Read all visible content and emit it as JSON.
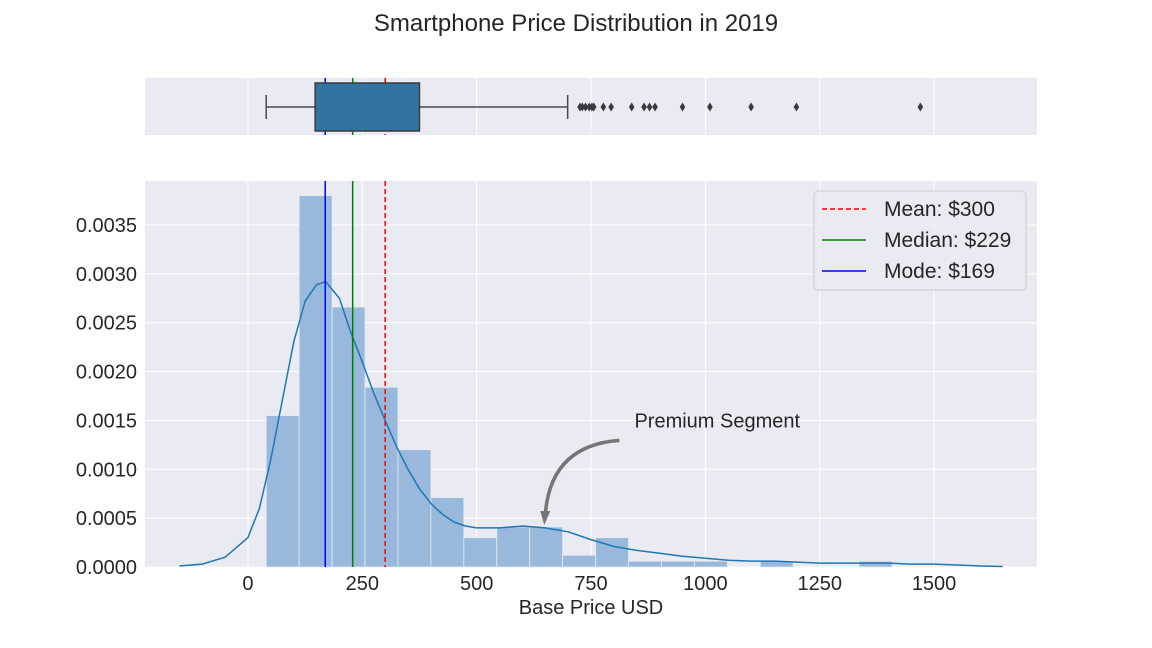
{
  "chart_data": {
    "type": "histogram-kde-boxplot",
    "title": "Smartphone Price Distribution in 2019",
    "xlabel": "Base Price USD",
    "ylabel": "",
    "xlim": [
      -225,
      1725
    ],
    "ylim": [
      0,
      0.00395
    ],
    "x_ticks": [
      0,
      250,
      500,
      750,
      1000,
      1250,
      1500
    ],
    "y_ticks": [
      0.0,
      0.0005,
      0.001,
      0.0015,
      0.002,
      0.0025,
      0.003,
      0.0035
    ],
    "y_tick_labels": [
      "0.0000",
      "0.0005",
      "0.0010",
      "0.0015",
      "0.0020",
      "0.0025",
      "0.0030",
      "0.0035"
    ],
    "grid": true,
    "histogram": {
      "color": "#8fb3d9",
      "bins": [
        {
          "x0": 40,
          "x1": 112,
          "density": 0.00155
        },
        {
          "x0": 112,
          "x1": 184,
          "density": 0.0038
        },
        {
          "x0": 184,
          "x1": 256,
          "density": 0.00266
        },
        {
          "x0": 256,
          "x1": 328,
          "density": 0.00184
        },
        {
          "x0": 328,
          "x1": 400,
          "density": 0.0012
        },
        {
          "x0": 400,
          "x1": 472,
          "density": 0.00071
        },
        {
          "x0": 472,
          "x1": 544,
          "density": 0.0003
        },
        {
          "x0": 544,
          "x1": 616,
          "density": 0.00041
        },
        {
          "x0": 616,
          "x1": 688,
          "density": 0.00041
        },
        {
          "x0": 688,
          "x1": 760,
          "density": 0.00012
        },
        {
          "x0": 760,
          "x1": 832,
          "density": 0.0003
        },
        {
          "x0": 832,
          "x1": 904,
          "density": 6e-05
        },
        {
          "x0": 904,
          "x1": 976,
          "density": 6e-05
        },
        {
          "x0": 976,
          "x1": 1048,
          "density": 6e-05
        },
        {
          "x0": 1048,
          "x1": 1120,
          "density": 0.0
        },
        {
          "x0": 1120,
          "x1": 1192,
          "density": 6e-05
        },
        {
          "x0": 1192,
          "x1": 1264,
          "density": 0.0
        },
        {
          "x0": 1264,
          "x1": 1336,
          "density": 0.0
        },
        {
          "x0": 1336,
          "x1": 1408,
          "density": 6e-05
        },
        {
          "x0": 1408,
          "x1": 1480,
          "density": 0.0
        }
      ]
    },
    "kde": {
      "color": "#1f77b4",
      "points": [
        [
          -150,
          1e-05
        ],
        [
          -100,
          3e-05
        ],
        [
          -50,
          0.0001
        ],
        [
          0,
          0.0003
        ],
        [
          25,
          0.0006
        ],
        [
          50,
          0.0011
        ],
        [
          75,
          0.0017
        ],
        [
          100,
          0.0023
        ],
        [
          125,
          0.00272
        ],
        [
          150,
          0.00289
        ],
        [
          170,
          0.00292
        ],
        [
          200,
          0.00275
        ],
        [
          225,
          0.0024
        ],
        [
          250,
          0.0021
        ],
        [
          275,
          0.00178
        ],
        [
          300,
          0.0015
        ],
        [
          325,
          0.00123
        ],
        [
          350,
          0.001
        ],
        [
          375,
          0.0008
        ],
        [
          400,
          0.00065
        ],
        [
          425,
          0.00054
        ],
        [
          450,
          0.00046
        ],
        [
          475,
          0.00042
        ],
        [
          500,
          0.0004
        ],
        [
          550,
          0.0004
        ],
        [
          600,
          0.00042
        ],
        [
          650,
          0.0004
        ],
        [
          700,
          0.00036
        ],
        [
          750,
          0.00028
        ],
        [
          800,
          0.00021
        ],
        [
          850,
          0.00017
        ],
        [
          900,
          0.00014
        ],
        [
          950,
          0.00011
        ],
        [
          1000,
          9e-05
        ],
        [
          1050,
          7e-05
        ],
        [
          1100,
          6e-05
        ],
        [
          1150,
          6e-05
        ],
        [
          1200,
          5e-05
        ],
        [
          1250,
          4e-05
        ],
        [
          1300,
          4e-05
        ],
        [
          1350,
          4e-05
        ],
        [
          1400,
          4e-05
        ],
        [
          1450,
          3e-05
        ],
        [
          1500,
          3e-05
        ],
        [
          1550,
          2e-05
        ],
        [
          1600,
          1e-05
        ],
        [
          1650,
          5e-06
        ]
      ]
    },
    "reference_lines": [
      {
        "label": "Mean: $300",
        "value": 300,
        "color": "#ff0000",
        "style": "dashed"
      },
      {
        "label": "Median: $229",
        "value": 229,
        "color": "#008000",
        "style": "solid"
      },
      {
        "label": "Mode: $169",
        "value": 169,
        "color": "#0000ff",
        "style": "solid"
      }
    ],
    "legend_position": "top-right",
    "annotation": {
      "text": "Premium Segment",
      "text_x": 845,
      "text_y": 0.0015,
      "arrow_to_x": 650,
      "arrow_to_y": 0.00045
    },
    "boxplot": {
      "whisker_low": 40,
      "q1": 147,
      "median": 229,
      "q3": 375,
      "whisker_high": 699,
      "fill": "#3274a1",
      "outliers": [
        726,
        731,
        738,
        746,
        752,
        756,
        777,
        794,
        839,
        866,
        878,
        890,
        950,
        1010,
        1100,
        1199,
        1470
      ]
    }
  }
}
